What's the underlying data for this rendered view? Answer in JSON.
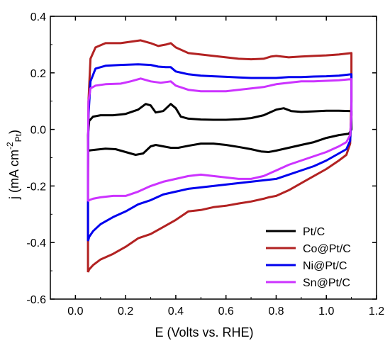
{
  "chart_data": {
    "type": "line",
    "title": "",
    "xlabel": "E (Volts vs. RHE)",
    "ylabel": {
      "main": "j (mA cm",
      "sup": "-2",
      "sub": "Pt",
      "close": ")"
    },
    "xlim": [
      -0.1,
      1.2
    ],
    "ylim": [
      -0.6,
      0.4
    ],
    "x_ticks": [
      {
        "value": 0.0,
        "label": "0.0"
      },
      {
        "value": 0.2,
        "label": "0.2"
      },
      {
        "value": 0.4,
        "label": "0.4"
      },
      {
        "value": 0.6,
        "label": "0.6"
      },
      {
        "value": 0.8,
        "label": "0.8"
      },
      {
        "value": 1.0,
        "label": "1.0"
      },
      {
        "value": 1.2,
        "label": "1.2"
      }
    ],
    "y_ticks": [
      {
        "value": -0.6,
        "label": "-0.6"
      },
      {
        "value": -0.4,
        "label": "-0.4"
      },
      {
        "value": -0.2,
        "label": "-0.2"
      },
      {
        "value": 0.0,
        "label": "0.0"
      },
      {
        "value": 0.2,
        "label": "0.2"
      },
      {
        "value": 0.4,
        "label": "0.4"
      }
    ],
    "grid": false,
    "legend_position": "bottom-right",
    "series": [
      {
        "name": "Pt/C",
        "color": "#000000",
        "points": [
          [
            0.05,
            -0.075
          ],
          [
            0.05,
            -0.02
          ],
          [
            0.055,
            0.03
          ],
          [
            0.07,
            0.045
          ],
          [
            0.1,
            0.05
          ],
          [
            0.15,
            0.05
          ],
          [
            0.2,
            0.055
          ],
          [
            0.25,
            0.07
          ],
          [
            0.28,
            0.09
          ],
          [
            0.3,
            0.085
          ],
          [
            0.32,
            0.06
          ],
          [
            0.35,
            0.065
          ],
          [
            0.38,
            0.09
          ],
          [
            0.4,
            0.075
          ],
          [
            0.42,
            0.045
          ],
          [
            0.45,
            0.038
          ],
          [
            0.5,
            0.035
          ],
          [
            0.55,
            0.034
          ],
          [
            0.6,
            0.034
          ],
          [
            0.65,
            0.036
          ],
          [
            0.7,
            0.04
          ],
          [
            0.75,
            0.05
          ],
          [
            0.8,
            0.07
          ],
          [
            0.83,
            0.075
          ],
          [
            0.86,
            0.065
          ],
          [
            0.9,
            0.062
          ],
          [
            0.95,
            0.064
          ],
          [
            1.0,
            0.066
          ],
          [
            1.05,
            0.066
          ],
          [
            1.1,
            0.065
          ],
          [
            1.1,
            0.0
          ],
          [
            1.09,
            -0.015
          ],
          [
            1.05,
            -0.02
          ],
          [
            1.0,
            -0.03
          ],
          [
            0.95,
            -0.045
          ],
          [
            0.9,
            -0.055
          ],
          [
            0.85,
            -0.065
          ],
          [
            0.8,
            -0.075
          ],
          [
            0.77,
            -0.08
          ],
          [
            0.74,
            -0.078
          ],
          [
            0.7,
            -0.07
          ],
          [
            0.65,
            -0.062
          ],
          [
            0.6,
            -0.055
          ],
          [
            0.55,
            -0.05
          ],
          [
            0.5,
            -0.05
          ],
          [
            0.45,
            -0.058
          ],
          [
            0.41,
            -0.065
          ],
          [
            0.38,
            -0.065
          ],
          [
            0.35,
            -0.06
          ],
          [
            0.32,
            -0.055
          ],
          [
            0.3,
            -0.06
          ],
          [
            0.27,
            -0.085
          ],
          [
            0.24,
            -0.09
          ],
          [
            0.2,
            -0.08
          ],
          [
            0.16,
            -0.07
          ],
          [
            0.12,
            -0.068
          ],
          [
            0.08,
            -0.072
          ],
          [
            0.05,
            -0.075
          ]
        ]
      },
      {
        "name": "Co@Pt/C",
        "color": "#b22222",
        "points": [
          [
            0.05,
            -0.505
          ],
          [
            0.05,
            -0.2
          ],
          [
            0.052,
            0.1
          ],
          [
            0.06,
            0.25
          ],
          [
            0.08,
            0.29
          ],
          [
            0.12,
            0.305
          ],
          [
            0.18,
            0.305
          ],
          [
            0.22,
            0.31
          ],
          [
            0.26,
            0.315
          ],
          [
            0.3,
            0.305
          ],
          [
            0.33,
            0.295
          ],
          [
            0.36,
            0.3
          ],
          [
            0.38,
            0.305
          ],
          [
            0.4,
            0.29
          ],
          [
            0.45,
            0.27
          ],
          [
            0.5,
            0.265
          ],
          [
            0.55,
            0.26
          ],
          [
            0.6,
            0.255
          ],
          [
            0.65,
            0.25
          ],
          [
            0.7,
            0.248
          ],
          [
            0.75,
            0.25
          ],
          [
            0.78,
            0.258
          ],
          [
            0.8,
            0.26
          ],
          [
            0.85,
            0.255
          ],
          [
            0.9,
            0.258
          ],
          [
            0.95,
            0.26
          ],
          [
            1.0,
            0.262
          ],
          [
            1.05,
            0.265
          ],
          [
            1.1,
            0.27
          ],
          [
            1.1,
            0.1
          ],
          [
            1.095,
            -0.05
          ],
          [
            1.08,
            -0.09
          ],
          [
            1.05,
            -0.11
          ],
          [
            1.0,
            -0.14
          ],
          [
            0.95,
            -0.165
          ],
          [
            0.9,
            -0.19
          ],
          [
            0.85,
            -0.215
          ],
          [
            0.8,
            -0.235
          ],
          [
            0.77,
            -0.24
          ],
          [
            0.75,
            -0.245
          ],
          [
            0.7,
            -0.255
          ],
          [
            0.65,
            -0.262
          ],
          [
            0.6,
            -0.27
          ],
          [
            0.55,
            -0.275
          ],
          [
            0.5,
            -0.285
          ],
          [
            0.45,
            -0.29
          ],
          [
            0.4,
            -0.32
          ],
          [
            0.35,
            -0.345
          ],
          [
            0.3,
            -0.37
          ],
          [
            0.25,
            -0.385
          ],
          [
            0.2,
            -0.415
          ],
          [
            0.15,
            -0.44
          ],
          [
            0.1,
            -0.46
          ],
          [
            0.07,
            -0.48
          ],
          [
            0.055,
            -0.495
          ],
          [
            0.05,
            -0.505
          ]
        ]
      },
      {
        "name": "Ni@Pt/C",
        "color": "#0000ee",
        "points": [
          [
            0.05,
            -0.395
          ],
          [
            0.05,
            -0.15
          ],
          [
            0.052,
            0.05
          ],
          [
            0.06,
            0.17
          ],
          [
            0.08,
            0.215
          ],
          [
            0.12,
            0.225
          ],
          [
            0.18,
            0.228
          ],
          [
            0.25,
            0.23
          ],
          [
            0.3,
            0.228
          ],
          [
            0.33,
            0.222
          ],
          [
            0.36,
            0.22
          ],
          [
            0.38,
            0.22
          ],
          [
            0.4,
            0.205
          ],
          [
            0.45,
            0.195
          ],
          [
            0.5,
            0.19
          ],
          [
            0.55,
            0.188
          ],
          [
            0.6,
            0.186
          ],
          [
            0.65,
            0.184
          ],
          [
            0.7,
            0.182
          ],
          [
            0.75,
            0.182
          ],
          [
            0.8,
            0.182
          ],
          [
            0.85,
            0.185
          ],
          [
            0.9,
            0.185
          ],
          [
            0.95,
            0.187
          ],
          [
            1.0,
            0.188
          ],
          [
            1.05,
            0.19
          ],
          [
            1.1,
            0.195
          ],
          [
            1.1,
            0.05
          ],
          [
            1.095,
            -0.04
          ],
          [
            1.08,
            -0.07
          ],
          [
            1.05,
            -0.085
          ],
          [
            1.0,
            -0.11
          ],
          [
            0.95,
            -0.13
          ],
          [
            0.9,
            -0.145
          ],
          [
            0.85,
            -0.16
          ],
          [
            0.8,
            -0.175
          ],
          [
            0.75,
            -0.18
          ],
          [
            0.7,
            -0.185
          ],
          [
            0.65,
            -0.19
          ],
          [
            0.6,
            -0.195
          ],
          [
            0.55,
            -0.2
          ],
          [
            0.5,
            -0.205
          ],
          [
            0.45,
            -0.21
          ],
          [
            0.4,
            -0.22
          ],
          [
            0.35,
            -0.23
          ],
          [
            0.3,
            -0.25
          ],
          [
            0.25,
            -0.265
          ],
          [
            0.2,
            -0.29
          ],
          [
            0.15,
            -0.31
          ],
          [
            0.1,
            -0.335
          ],
          [
            0.07,
            -0.36
          ],
          [
            0.055,
            -0.38
          ],
          [
            0.05,
            -0.395
          ]
        ]
      },
      {
        "name": "Sn@Pt/C",
        "color": "#cc33ff",
        "points": [
          [
            0.05,
            -0.255
          ],
          [
            0.05,
            -0.05
          ],
          [
            0.052,
            0.1
          ],
          [
            0.06,
            0.145
          ],
          [
            0.08,
            0.155
          ],
          [
            0.12,
            0.16
          ],
          [
            0.18,
            0.162
          ],
          [
            0.22,
            0.17
          ],
          [
            0.26,
            0.18
          ],
          [
            0.3,
            0.17
          ],
          [
            0.34,
            0.165
          ],
          [
            0.38,
            0.17
          ],
          [
            0.4,
            0.155
          ],
          [
            0.45,
            0.14
          ],
          [
            0.5,
            0.135
          ],
          [
            0.55,
            0.135
          ],
          [
            0.6,
            0.135
          ],
          [
            0.65,
            0.14
          ],
          [
            0.7,
            0.145
          ],
          [
            0.75,
            0.15
          ],
          [
            0.8,
            0.16
          ],
          [
            0.85,
            0.165
          ],
          [
            0.9,
            0.17
          ],
          [
            0.95,
            0.17
          ],
          [
            1.0,
            0.172
          ],
          [
            1.05,
            0.174
          ],
          [
            1.1,
            0.178
          ],
          [
            1.1,
            0.05
          ],
          [
            1.095,
            -0.02
          ],
          [
            1.08,
            -0.045
          ],
          [
            1.05,
            -0.06
          ],
          [
            1.0,
            -0.08
          ],
          [
            0.95,
            -0.095
          ],
          [
            0.9,
            -0.11
          ],
          [
            0.85,
            -0.125
          ],
          [
            0.8,
            -0.145
          ],
          [
            0.75,
            -0.165
          ],
          [
            0.7,
            -0.175
          ],
          [
            0.65,
            -0.175
          ],
          [
            0.6,
            -0.17
          ],
          [
            0.55,
            -0.165
          ],
          [
            0.5,
            -0.16
          ],
          [
            0.45,
            -0.165
          ],
          [
            0.4,
            -0.175
          ],
          [
            0.35,
            -0.185
          ],
          [
            0.3,
            -0.2
          ],
          [
            0.25,
            -0.22
          ],
          [
            0.2,
            -0.235
          ],
          [
            0.15,
            -0.235
          ],
          [
            0.1,
            -0.24
          ],
          [
            0.07,
            -0.245
          ],
          [
            0.055,
            -0.25
          ],
          [
            0.05,
            -0.255
          ]
        ]
      }
    ]
  }
}
